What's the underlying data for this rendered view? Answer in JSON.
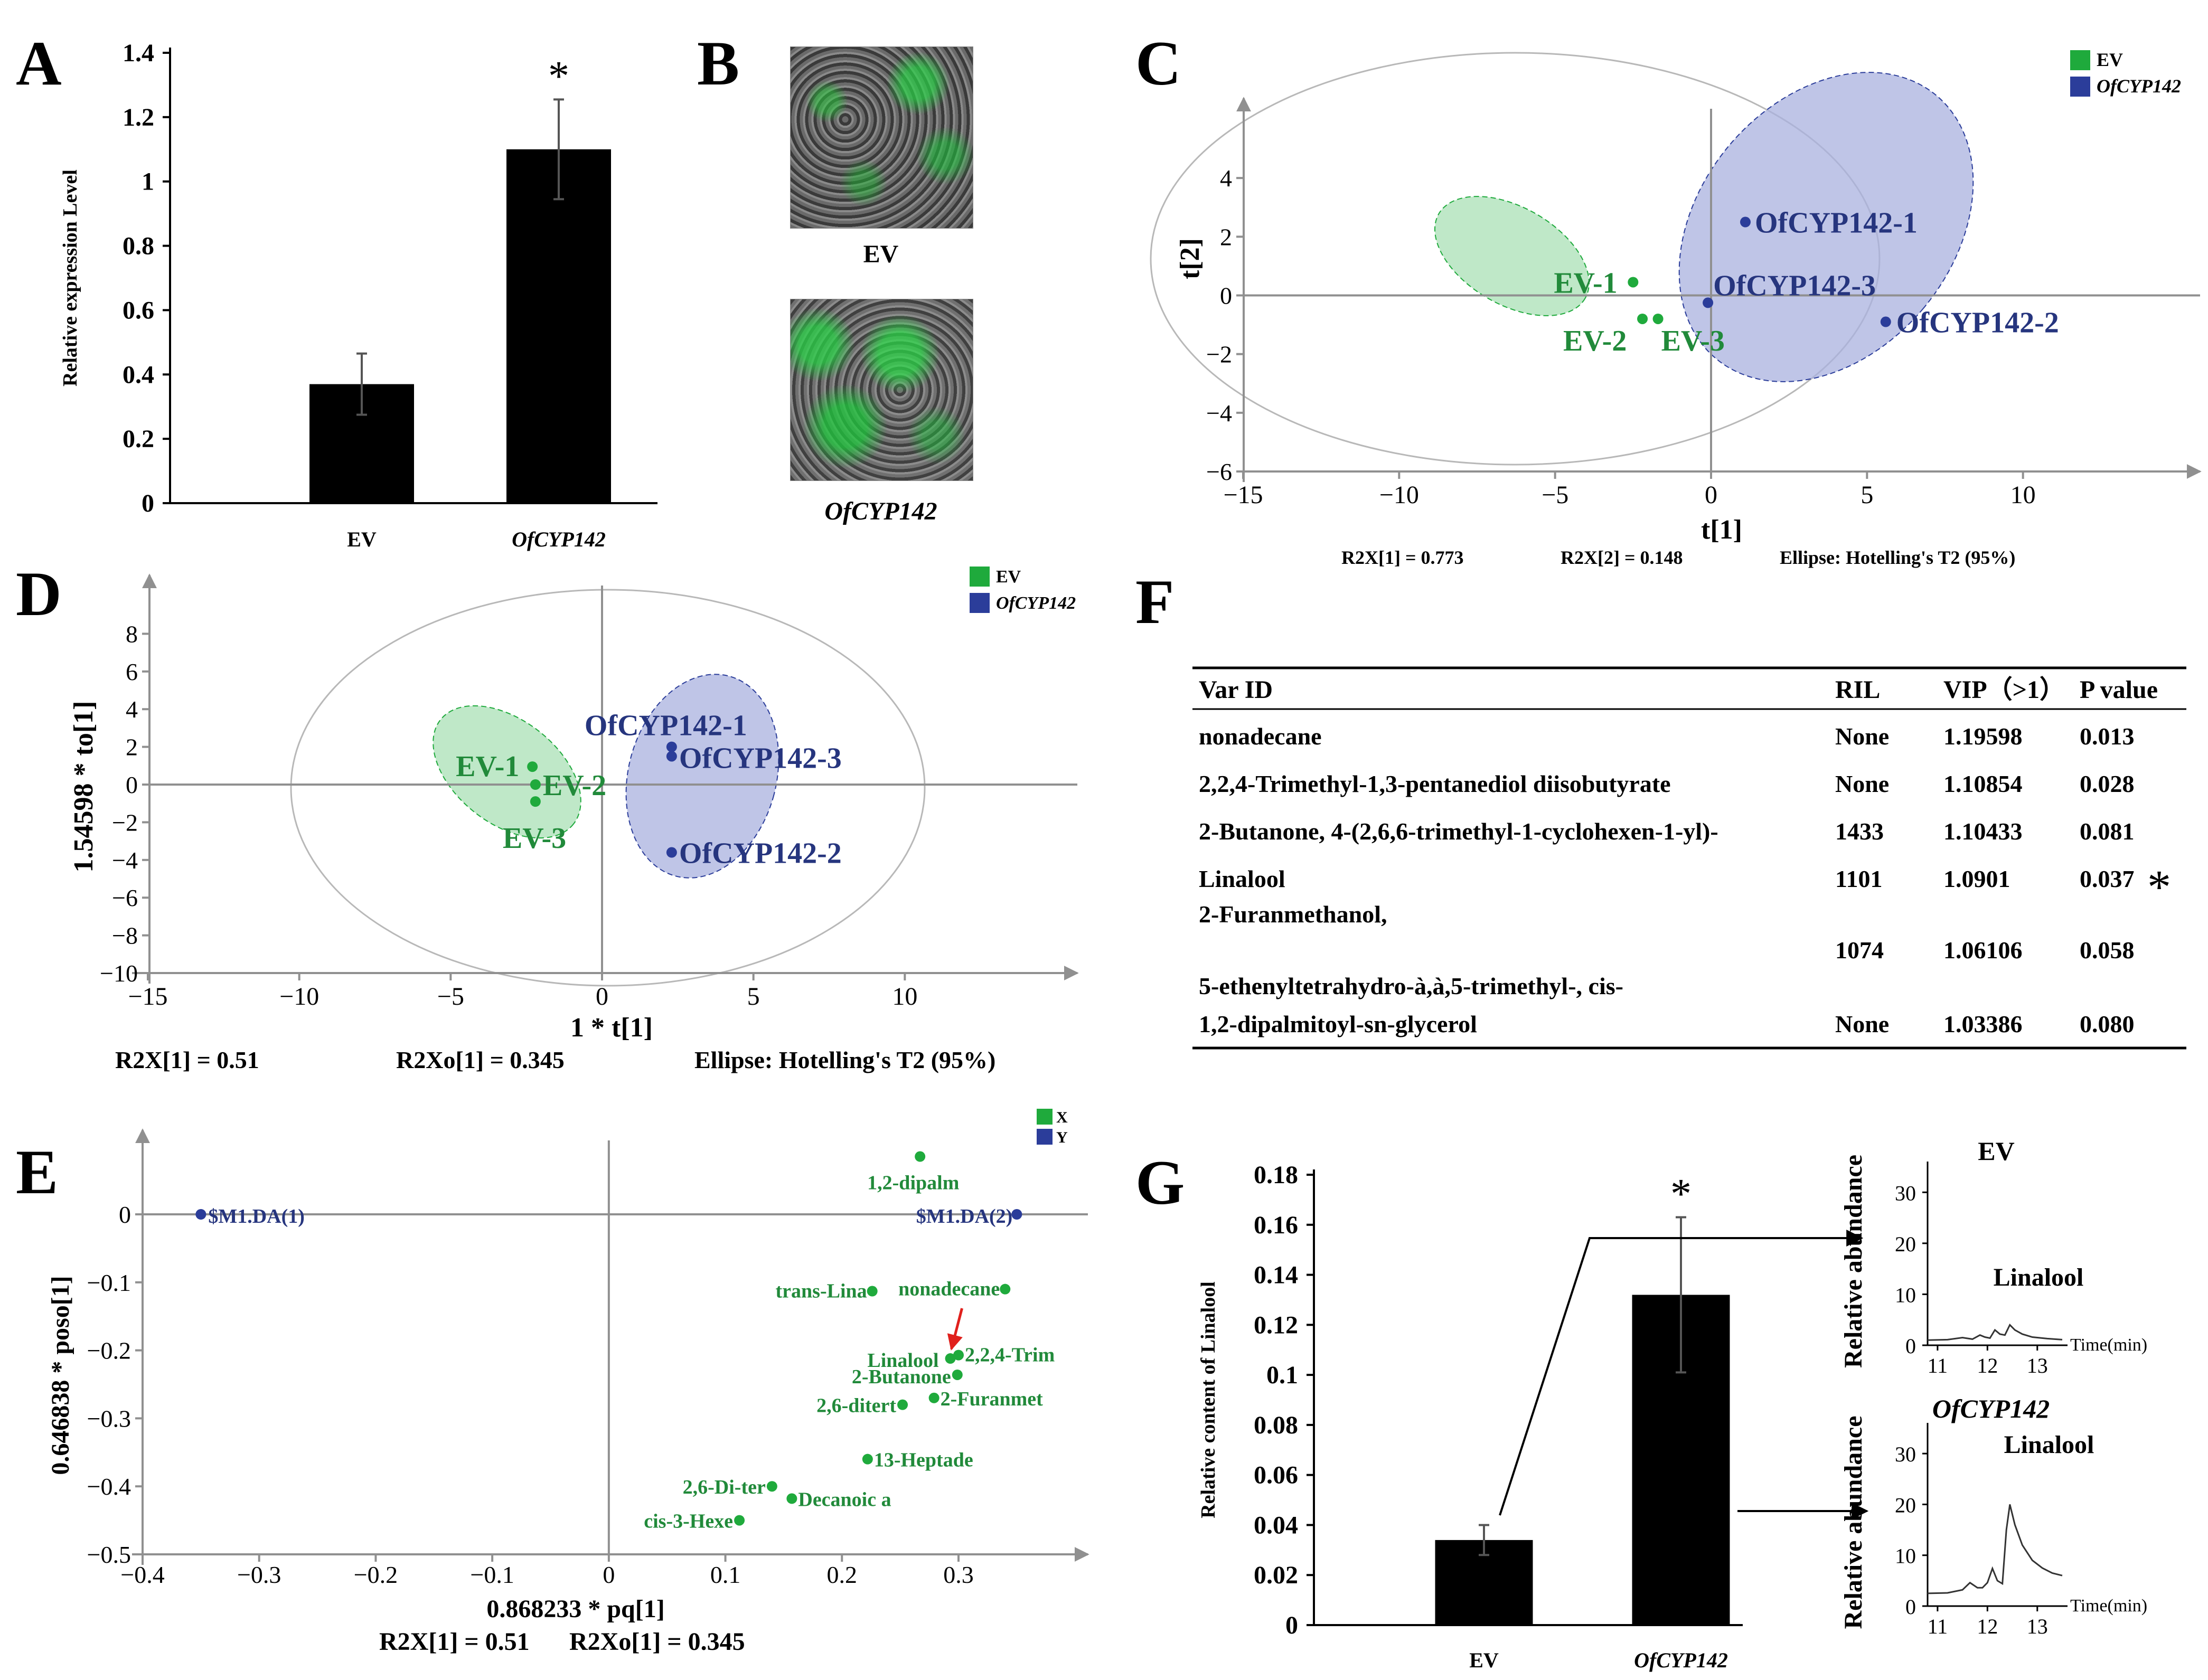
{
  "panels": {
    "A": "A",
    "B": "B",
    "C": "C",
    "D": "D",
    "E": "E",
    "F": "F",
    "G": "G"
  },
  "colors": {
    "ev": "#1faa3c",
    "of": "#2b3d9a",
    "ev_fill": "#a9e0b6",
    "of_fill": "#aab2df",
    "label_ev": "#218a3a",
    "label_of": "#26357e",
    "arrow": "#e0201c"
  },
  "panel_b": {
    "ev_label": "EV",
    "of_label": "OfCYP142"
  },
  "chart_data": [
    {
      "id": "A",
      "type": "bar",
      "categories": [
        "EV",
        "OfCYP142"
      ],
      "values": [
        0.37,
        1.1
      ],
      "errors": [
        0.095,
        0.155
      ],
      "significance": [
        "",
        "*"
      ],
      "ylabel": "Relative expression Level",
      "ylim": [
        0,
        1.4
      ],
      "yticks": [
        "0",
        "0.2",
        "0.4",
        "0.6",
        "0.8",
        "1",
        "1.2",
        "1.4"
      ]
    },
    {
      "id": "C",
      "type": "scatter",
      "xlabel": "t[1]",
      "ylabel": "t[2]",
      "xlim": [
        -15,
        15
      ],
      "ylim": [
        -6,
        6
      ],
      "xticks": [
        "−15",
        "−10",
        "−5",
        "0",
        "5",
        "10"
      ],
      "yticks": [
        "−6",
        "−4",
        "−2",
        "0",
        "2",
        "4"
      ],
      "legend": [
        {
          "name": "EV"
        },
        {
          "name": "OfCYP142"
        }
      ],
      "points": [
        {
          "label": "EV-1",
          "group": "EV",
          "x": -2.5,
          "y": 0.45
        },
        {
          "label": "EV-2",
          "group": "EV",
          "x": -2.2,
          "y": -0.8
        },
        {
          "label": "EV-3",
          "group": "EV",
          "x": -1.7,
          "y": -0.8
        },
        {
          "label": "OfCYP142-1",
          "group": "OfCYP142",
          "x": 1.1,
          "y": 2.5
        },
        {
          "label": "OfCYP142-3",
          "group": "OfCYP142",
          "x": -0.1,
          "y": -0.25
        },
        {
          "label": "OfCYP142-2",
          "group": "OfCYP142",
          "x": 5.6,
          "y": -0.9
        }
      ],
      "footer": [
        "R2X[1] = 0.773",
        "R2X[2] = 0.148",
        "Ellipse: Hotelling's T2 (95%)"
      ]
    },
    {
      "id": "D",
      "type": "scatter",
      "xlabel": "1 * t[1]",
      "ylabel": "1.54598 * to[1]",
      "xlim": [
        -15,
        15
      ],
      "ylim": [
        -10,
        10
      ],
      "xticks": [
        "−15",
        "−10",
        "−5",
        "0",
        "5",
        "10"
      ],
      "yticks": [
        "−10",
        "−8",
        "−6",
        "−4",
        "−2",
        "0",
        "2",
        "4",
        "6",
        "8"
      ],
      "legend": [
        {
          "name": "EV"
        },
        {
          "name": "OfCYP142"
        }
      ],
      "points": [
        {
          "label": "EV-1",
          "group": "EV",
          "x": -2.3,
          "y": 0.95
        },
        {
          "label": "EV-2",
          "group": "EV",
          "x": -2.2,
          "y": 0.0
        },
        {
          "label": "EV-3",
          "group": "EV",
          "x": -2.2,
          "y": -0.9
        },
        {
          "label": "OfCYP142-1",
          "group": "OfCYP142",
          "x": 2.3,
          "y": 2.0
        },
        {
          "label": "OfCYP142-3",
          "group": "OfCYP142",
          "x": 2.3,
          "y": 1.5
        },
        {
          "label": "OfCYP142-2",
          "group": "OfCYP142",
          "x": 2.3,
          "y": -3.6
        }
      ],
      "footer": [
        "R2X[1] = 0.51",
        "R2Xo[1] = 0.345",
        "Ellipse: Hotelling's T2 (95%)"
      ]
    },
    {
      "id": "E",
      "type": "scatter",
      "xlabel": "0.868233 * pq[1]",
      "ylabel": "0.646838 * poso[1]",
      "xlim": [
        -0.4,
        0.4
      ],
      "ylim": [
        -0.5,
        0.1
      ],
      "xticks": [
        "−0.4",
        "−0.3",
        "−0.2",
        "−0.1",
        "0",
        "0.1",
        "0.2",
        "0.3"
      ],
      "yticks": [
        "−0.5",
        "−0.4",
        "−0.3",
        "−0.2",
        "−0.1",
        "0"
      ],
      "legend": [
        {
          "name": "X"
        },
        {
          "name": "Y"
        }
      ],
      "points": [
        {
          "label": "$M1.DA(1)",
          "group": "Y",
          "x": -0.35,
          "y": 0.0
        },
        {
          "label": "$M1.DA(2)",
          "group": "Y",
          "x": 0.35,
          "y": 0.0
        },
        {
          "label": "1,2-dipalm",
          "group": "X",
          "x": 0.267,
          "y": 0.085
        },
        {
          "label": "nonadecane",
          "group": "X",
          "x": 0.34,
          "y": -0.11
        },
        {
          "label": "trans-Lina",
          "group": "X",
          "x": 0.226,
          "y": -0.113
        },
        {
          "label": "Linalool",
          "group": "X",
          "x": 0.293,
          "y": -0.212
        },
        {
          "label": "2,2,4-Trim",
          "group": "X",
          "x": 0.3,
          "y": -0.207
        },
        {
          "label": "2-Butanone",
          "group": "X",
          "x": 0.299,
          "y": -0.236
        },
        {
          "label": "2-Furanmet",
          "group": "X",
          "x": 0.279,
          "y": -0.27
        },
        {
          "label": "2,6-ditert",
          "group": "X",
          "x": 0.252,
          "y": -0.28
        },
        {
          "label": "13-Heptade",
          "group": "X",
          "x": 0.222,
          "y": -0.36
        },
        {
          "label": "2,6-Di-ter",
          "group": "X",
          "x": 0.14,
          "y": -0.4
        },
        {
          "label": "Decanoic a",
          "group": "X",
          "x": 0.157,
          "y": -0.418
        },
        {
          "label": "cis-3-Hexe",
          "group": "X",
          "x": 0.112,
          "y": -0.45
        }
      ],
      "footer": [
        "R2X[1] = 0.51",
        "R2Xo[1] = 0.345"
      ]
    },
    {
      "id": "F",
      "type": "table",
      "columns": [
        "Var ID",
        "RIL",
        "VIP（>1）",
        "P value"
      ],
      "rows": [
        {
          "var": "nonadecane",
          "var2": "",
          "ril": "None",
          "vip": "1.19598",
          "p": "0.013",
          "mark": ""
        },
        {
          "var": "2,2,4-Trimethyl-1,3-pentanediol diisobutyrate",
          "var2": "",
          "ril": "None",
          "vip": "1.10854",
          "p": "0.028",
          "mark": ""
        },
        {
          "var": "2-Butanone, 4-(2,6,6-trimethyl-1-cyclohexen-1-yl)-",
          "var2": "",
          "ril": "1433",
          "vip": "1.10433",
          "p": "0.081",
          "mark": ""
        },
        {
          "var": "Linalool",
          "var2": "",
          "ril": "1101",
          "vip": "1.0901",
          "p": "0.037",
          "mark": "*"
        },
        {
          "var": "2-Furanmethanol,",
          "var2": "5-ethenyltetrahydro-à,à,5-trimethyl-, cis-",
          "ril": "1074",
          "vip": "1.06106",
          "p": "0.058",
          "mark": ""
        },
        {
          "var": "1,2-dipalmitoyl-sn-glycerol",
          "var2": "",
          "ril": "None",
          "vip": "1.03386",
          "p": "0.080",
          "mark": ""
        }
      ]
    },
    {
      "id": "G",
      "type": "bar",
      "categories": [
        "EV",
        "OfCYP142"
      ],
      "values": [
        0.034,
        0.132
      ],
      "errors": [
        0.006,
        0.031
      ],
      "significance": [
        "",
        "*"
      ],
      "ylabel": "Relative content of Linalool",
      "ylim": [
        0,
        0.18
      ],
      "yticks": [
        "0",
        "0.02",
        "0.04",
        "0.06",
        "0.08",
        "0.1",
        "0.12",
        "0.14",
        "0.16",
        "0.18"
      ]
    },
    {
      "id": "G-inset-EV",
      "type": "line",
      "title": "EV",
      "peak_label": "Linalool",
      "xlabel": "Time(min)",
      "ylabel": "Relative abundance",
      "xlim": [
        10.8,
        13.5
      ],
      "ylim": [
        0,
        35
      ],
      "xticks": [
        "11",
        "12",
        "13"
      ],
      "yticks": [
        "0",
        "10",
        "20",
        "30"
      ],
      "x": [
        10.8,
        11.2,
        11.5,
        11.7,
        11.85,
        11.95,
        12.05,
        12.15,
        12.25,
        12.35,
        12.45,
        12.55,
        12.7,
        12.9,
        13.2,
        13.5
      ],
      "y": [
        1.0,
        1.1,
        1.5,
        1.2,
        2.0,
        1.6,
        1.4,
        3.0,
        2.2,
        2.0,
        4.0,
        3.0,
        2.2,
        1.6,
        1.3,
        1.1
      ]
    },
    {
      "id": "G-inset-OF",
      "type": "line",
      "title": "OfCYP142",
      "peak_label": "Linalool",
      "xlabel": "Time(min)",
      "ylabel": "Relative abundance",
      "xlim": [
        10.8,
        13.5
      ],
      "ylim": [
        0,
        35
      ],
      "xticks": [
        "11",
        "12",
        "13"
      ],
      "yticks": [
        "0",
        "10",
        "20",
        "30"
      ],
      "x": [
        10.8,
        11.2,
        11.5,
        11.65,
        11.8,
        11.9,
        12.0,
        12.1,
        12.2,
        12.3,
        12.38,
        12.45,
        12.55,
        12.7,
        12.9,
        13.1,
        13.3,
        13.5
      ],
      "y": [
        2.5,
        2.6,
        3.2,
        4.6,
        3.6,
        3.6,
        4.6,
        7.4,
        5.0,
        4.4,
        15.0,
        20.0,
        16.0,
        12.0,
        9.0,
        7.5,
        6.5,
        6.0
      ]
    }
  ]
}
